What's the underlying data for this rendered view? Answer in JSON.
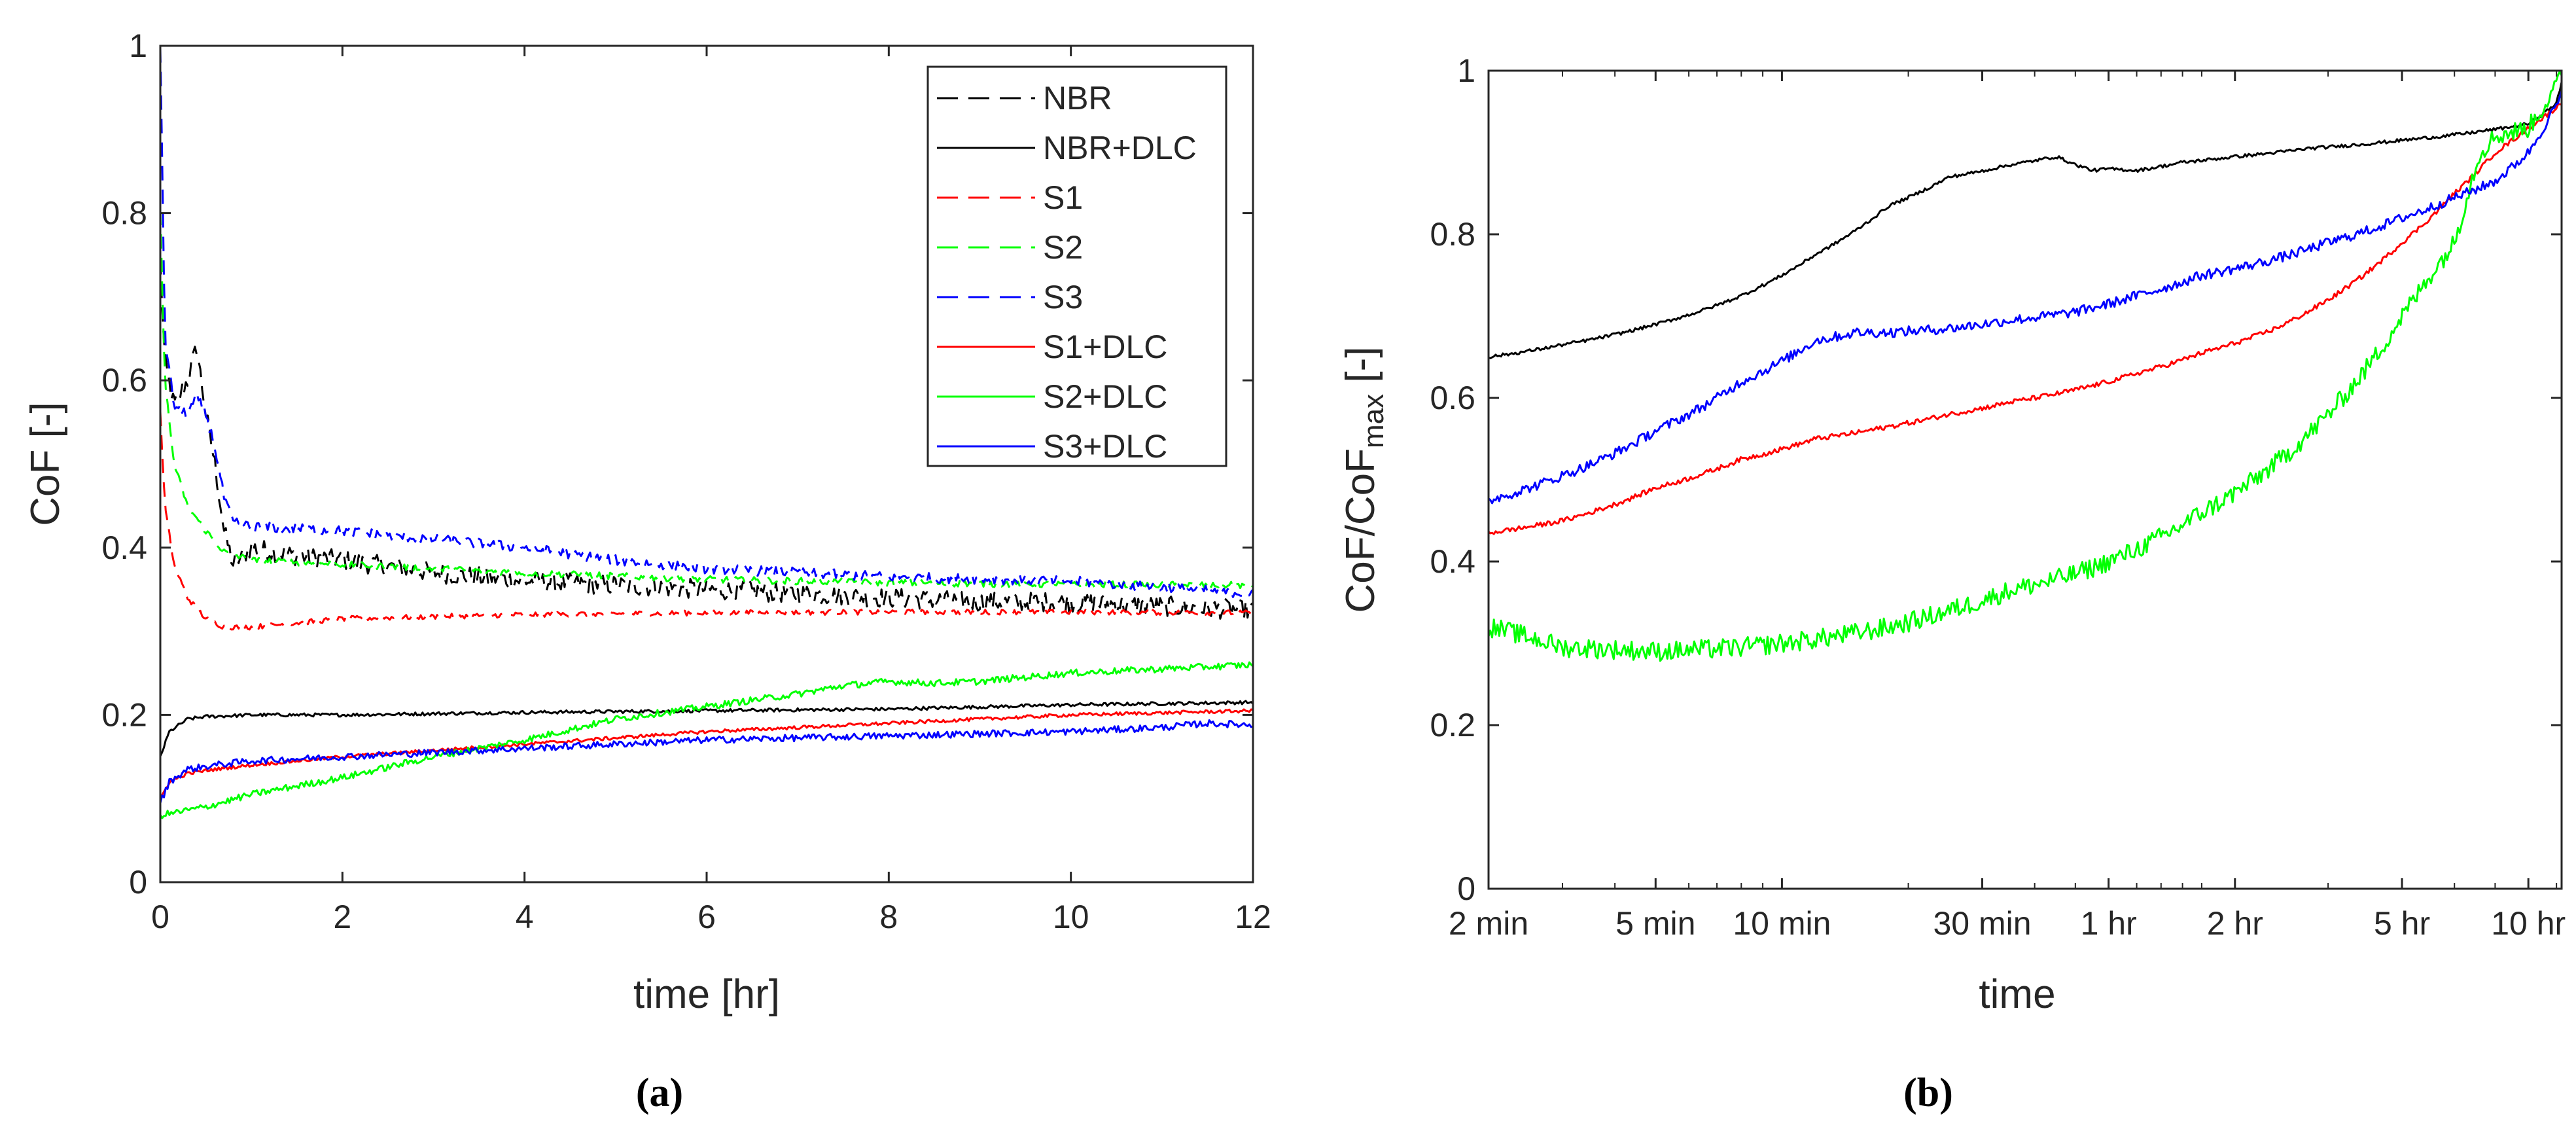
{
  "chart_data": [
    {
      "id": "a",
      "type": "line",
      "panel_label": "(a)",
      "xlabel": "time [hr]",
      "ylabel": "CoF [-]",
      "xlim": [
        0,
        12
      ],
      "ylim": [
        0,
        1
      ],
      "xticks": [
        0,
        2,
        4,
        6,
        8,
        10,
        12
      ],
      "yticks": [
        0,
        0.2,
        0.4,
        0.6,
        0.8,
        1
      ],
      "xtick_labels": [
        "0",
        "2",
        "4",
        "6",
        "8",
        "10",
        "12"
      ],
      "ytick_labels": [
        "0",
        "0.2",
        "0.4",
        "0.6",
        "0.8",
        "1"
      ],
      "grid": false,
      "legend_position": "top-right",
      "series": [
        {
          "name": "NBR",
          "color": "#000000",
          "dash": "dashed",
          "noise": 0.012,
          "x": [
            0,
            0.05,
            0.15,
            0.3,
            0.4,
            0.5,
            0.6,
            0.7,
            0.8,
            1.0,
            1.5,
            2,
            3,
            4,
            5,
            6,
            7,
            8,
            9,
            10,
            11,
            12
          ],
          "y": [
            0.74,
            0.62,
            0.57,
            0.6,
            0.64,
            0.56,
            0.5,
            0.42,
            0.38,
            0.4,
            0.39,
            0.385,
            0.37,
            0.36,
            0.355,
            0.35,
            0.345,
            0.34,
            0.335,
            0.335,
            0.33,
            0.325
          ]
        },
        {
          "name": "NBR+DLC",
          "color": "#000000",
          "dash": "solid",
          "noise": 0.002,
          "x": [
            0,
            0.1,
            0.3,
            0.5,
            0.8,
            1,
            2,
            4,
            6,
            8,
            10,
            12
          ],
          "y": [
            0.15,
            0.18,
            0.195,
            0.198,
            0.199,
            0.2,
            0.2,
            0.203,
            0.205,
            0.207,
            0.212,
            0.215
          ]
        },
        {
          "name": "S1",
          "color": "#ff0000",
          "dash": "dashed",
          "noise": 0.003,
          "x": [
            0,
            0.05,
            0.15,
            0.3,
            0.5,
            0.7,
            1,
            1.5,
            2,
            4,
            6,
            8,
            10,
            12
          ],
          "y": [
            0.56,
            0.45,
            0.38,
            0.34,
            0.315,
            0.305,
            0.305,
            0.31,
            0.315,
            0.32,
            0.322,
            0.323,
            0.323,
            0.322
          ]
        },
        {
          "name": "S2",
          "color": "#00ff00",
          "dash": "dashed",
          "noise": 0.004,
          "x": [
            0,
            0.05,
            0.15,
            0.3,
            0.5,
            0.7,
            1,
            2,
            3,
            4,
            6,
            8,
            10,
            12
          ],
          "y": [
            0.8,
            0.6,
            0.5,
            0.45,
            0.42,
            0.395,
            0.385,
            0.38,
            0.375,
            0.37,
            0.362,
            0.358,
            0.356,
            0.355
          ]
        },
        {
          "name": "S3",
          "color": "#0000ff",
          "dash": "dashed",
          "noise": 0.006,
          "x": [
            0,
            0.05,
            0.15,
            0.3,
            0.4,
            0.5,
            0.6,
            0.7,
            0.8,
            1,
            2,
            3,
            4,
            5,
            6,
            8,
            10,
            12
          ],
          "y": [
            1.0,
            0.65,
            0.57,
            0.56,
            0.58,
            0.56,
            0.52,
            0.46,
            0.43,
            0.425,
            0.42,
            0.41,
            0.4,
            0.385,
            0.375,
            0.365,
            0.36,
            0.345
          ]
        },
        {
          "name": "S1+DLC",
          "color": "#ff0000",
          "dash": "solid",
          "noise": 0.002,
          "x": [
            0,
            0.1,
            0.3,
            0.6,
            1,
            2,
            4,
            6,
            8,
            10,
            12
          ],
          "y": [
            0.1,
            0.12,
            0.13,
            0.135,
            0.14,
            0.15,
            0.165,
            0.18,
            0.19,
            0.2,
            0.205
          ]
        },
        {
          "name": "S2+DLC",
          "color": "#00ff00",
          "dash": "solid",
          "noise": 0.004,
          "x": [
            0,
            0.5,
            1,
            2,
            3,
            4,
            5,
            6,
            7,
            7.5,
            8,
            8.5,
            9,
            10,
            11,
            12
          ],
          "y": [
            0.08,
            0.09,
            0.105,
            0.125,
            0.15,
            0.17,
            0.195,
            0.21,
            0.225,
            0.235,
            0.24,
            0.238,
            0.24,
            0.25,
            0.255,
            0.26
          ]
        },
        {
          "name": "S3+DLC",
          "color": "#0000ff",
          "dash": "solid",
          "noise": 0.004,
          "x": [
            0,
            0.1,
            0.3,
            0.6,
            1,
            2,
            4,
            6,
            8,
            10,
            11,
            11.5,
            12
          ],
          "y": [
            0.095,
            0.12,
            0.135,
            0.14,
            0.145,
            0.15,
            0.16,
            0.17,
            0.175,
            0.18,
            0.185,
            0.19,
            0.188
          ]
        }
      ]
    },
    {
      "id": "b",
      "type": "line",
      "panel_label": "(b)",
      "xlabel": "time",
      "ylabel": "CoF/CoF",
      "ylabel_subscript": "max",
      "ylabel_suffix": " [-]",
      "x_scale": "log",
      "x_unit": "minutes",
      "xlim": [
        2,
        720
      ],
      "ylim": [
        0,
        1
      ],
      "xticks": [
        2,
        5,
        10,
        30,
        60,
        120,
        300,
        600
      ],
      "xtick_labels": [
        "2 min",
        "5 min",
        "10 min",
        "30 min",
        "1 hr",
        "2 hr",
        "5 hr",
        "10 hr"
      ],
      "yticks": [
        0,
        0.2,
        0.4,
        0.6,
        0.8,
        1
      ],
      "ytick_labels": [
        "0",
        "0.2",
        "0.4",
        "0.6",
        "0.8",
        "1"
      ],
      "grid": false,
      "legend_position": "none",
      "series": [
        {
          "color": "#000000",
          "dash": "solid",
          "noise": 0.002,
          "x": [
            2,
            3,
            5,
            8,
            12,
            18,
            25,
            35,
            45,
            50,
            55,
            60,
            70,
            90,
            120,
            180,
            300,
            450,
            600,
            700,
            720
          ],
          "y": [
            0.65,
            0.665,
            0.69,
            0.725,
            0.775,
            0.835,
            0.87,
            0.885,
            0.895,
            0.885,
            0.878,
            0.88,
            0.878,
            0.888,
            0.895,
            0.905,
            0.915,
            0.925,
            0.935,
            0.96,
            0.985
          ]
        },
        {
          "color": "#ff0000",
          "dash": "solid",
          "noise": 0.003,
          "x": [
            2,
            3,
            5,
            8,
            12,
            18,
            25,
            35,
            50,
            70,
            100,
            150,
            200,
            300,
            400,
            500,
            600,
            720
          ],
          "y": [
            0.435,
            0.45,
            0.49,
            0.525,
            0.55,
            0.565,
            0.58,
            0.595,
            0.61,
            0.63,
            0.655,
            0.685,
            0.72,
            0.79,
            0.85,
            0.9,
            0.93,
            0.96
          ]
        },
        {
          "color": "#00ff00",
          "dash": "solid",
          "noise": 0.012,
          "x": [
            2,
            3,
            5,
            8,
            12,
            18,
            25,
            35,
            50,
            70,
            100,
            150,
            200,
            250,
            300,
            350,
            400,
            430,
            460,
            500,
            600,
            700,
            720
          ],
          "y": [
            0.32,
            0.295,
            0.29,
            0.295,
            0.305,
            0.32,
            0.34,
            0.365,
            0.385,
            0.415,
            0.46,
            0.52,
            0.58,
            0.64,
            0.7,
            0.75,
            0.79,
            0.85,
            0.9,
            0.92,
            0.93,
            0.98,
            1.0
          ]
        },
        {
          "color": "#0000ff",
          "dash": "solid",
          "noise": 0.006,
          "x": [
            2,
            3,
            5,
            8,
            12,
            15,
            18,
            25,
            35,
            50,
            70,
            100,
            150,
            200,
            300,
            400,
            500,
            600,
            720
          ],
          "y": [
            0.475,
            0.505,
            0.56,
            0.62,
            0.67,
            0.68,
            0.68,
            0.685,
            0.695,
            0.705,
            0.725,
            0.75,
            0.77,
            0.79,
            0.82,
            0.845,
            0.865,
            0.9,
            0.97
          ]
        }
      ]
    }
  ]
}
